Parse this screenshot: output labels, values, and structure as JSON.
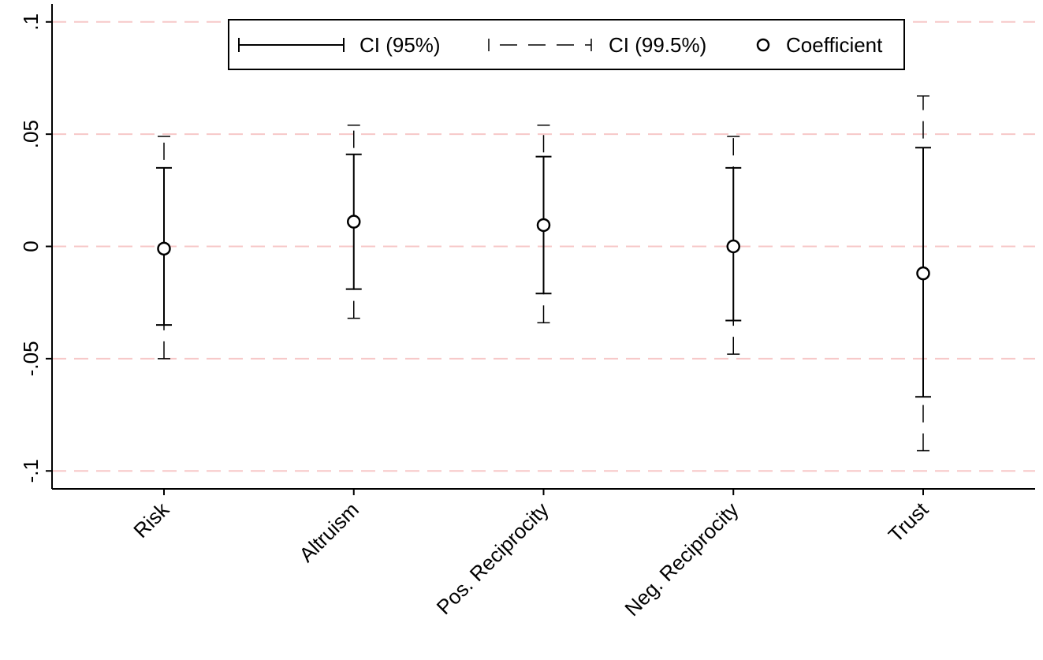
{
  "chart_data": {
    "type": "coefplot",
    "categories": [
      "Risk",
      "Altruism",
      "Pos. Reciprocity",
      "Neg. Reciprocity",
      "Trust"
    ],
    "series": [
      {
        "name": "CI (95%)",
        "color": "#000000",
        "lower": [
          -0.035,
          -0.019,
          -0.021,
          -0.033,
          -0.067
        ],
        "upper": [
          0.035,
          0.041,
          0.04,
          0.035,
          0.044
        ]
      },
      {
        "name": "CI (99.5%)",
        "color": "#000000",
        "lower": [
          -0.05,
          -0.032,
          -0.034,
          -0.048,
          -0.091
        ],
        "upper": [
          0.049,
          0.054,
          0.054,
          0.049,
          0.067
        ]
      },
      {
        "name": "Coefficient",
        "color": "#000000",
        "values": [
          -0.001,
          0.011,
          0.0095,
          0.0,
          -0.012
        ]
      }
    ],
    "ylim": [
      -0.108,
      0.108
    ],
    "yticks": [
      {
        "value": -0.1,
        "label": "-.1"
      },
      {
        "value": -0.05,
        "label": "-.05"
      },
      0,
      {
        "value": 0.05,
        "label": ".05"
      },
      {
        "value": 0.1,
        "label": ".1"
      }
    ],
    "grid": true,
    "grid_color": "#f7c8c8",
    "legend": "top"
  }
}
